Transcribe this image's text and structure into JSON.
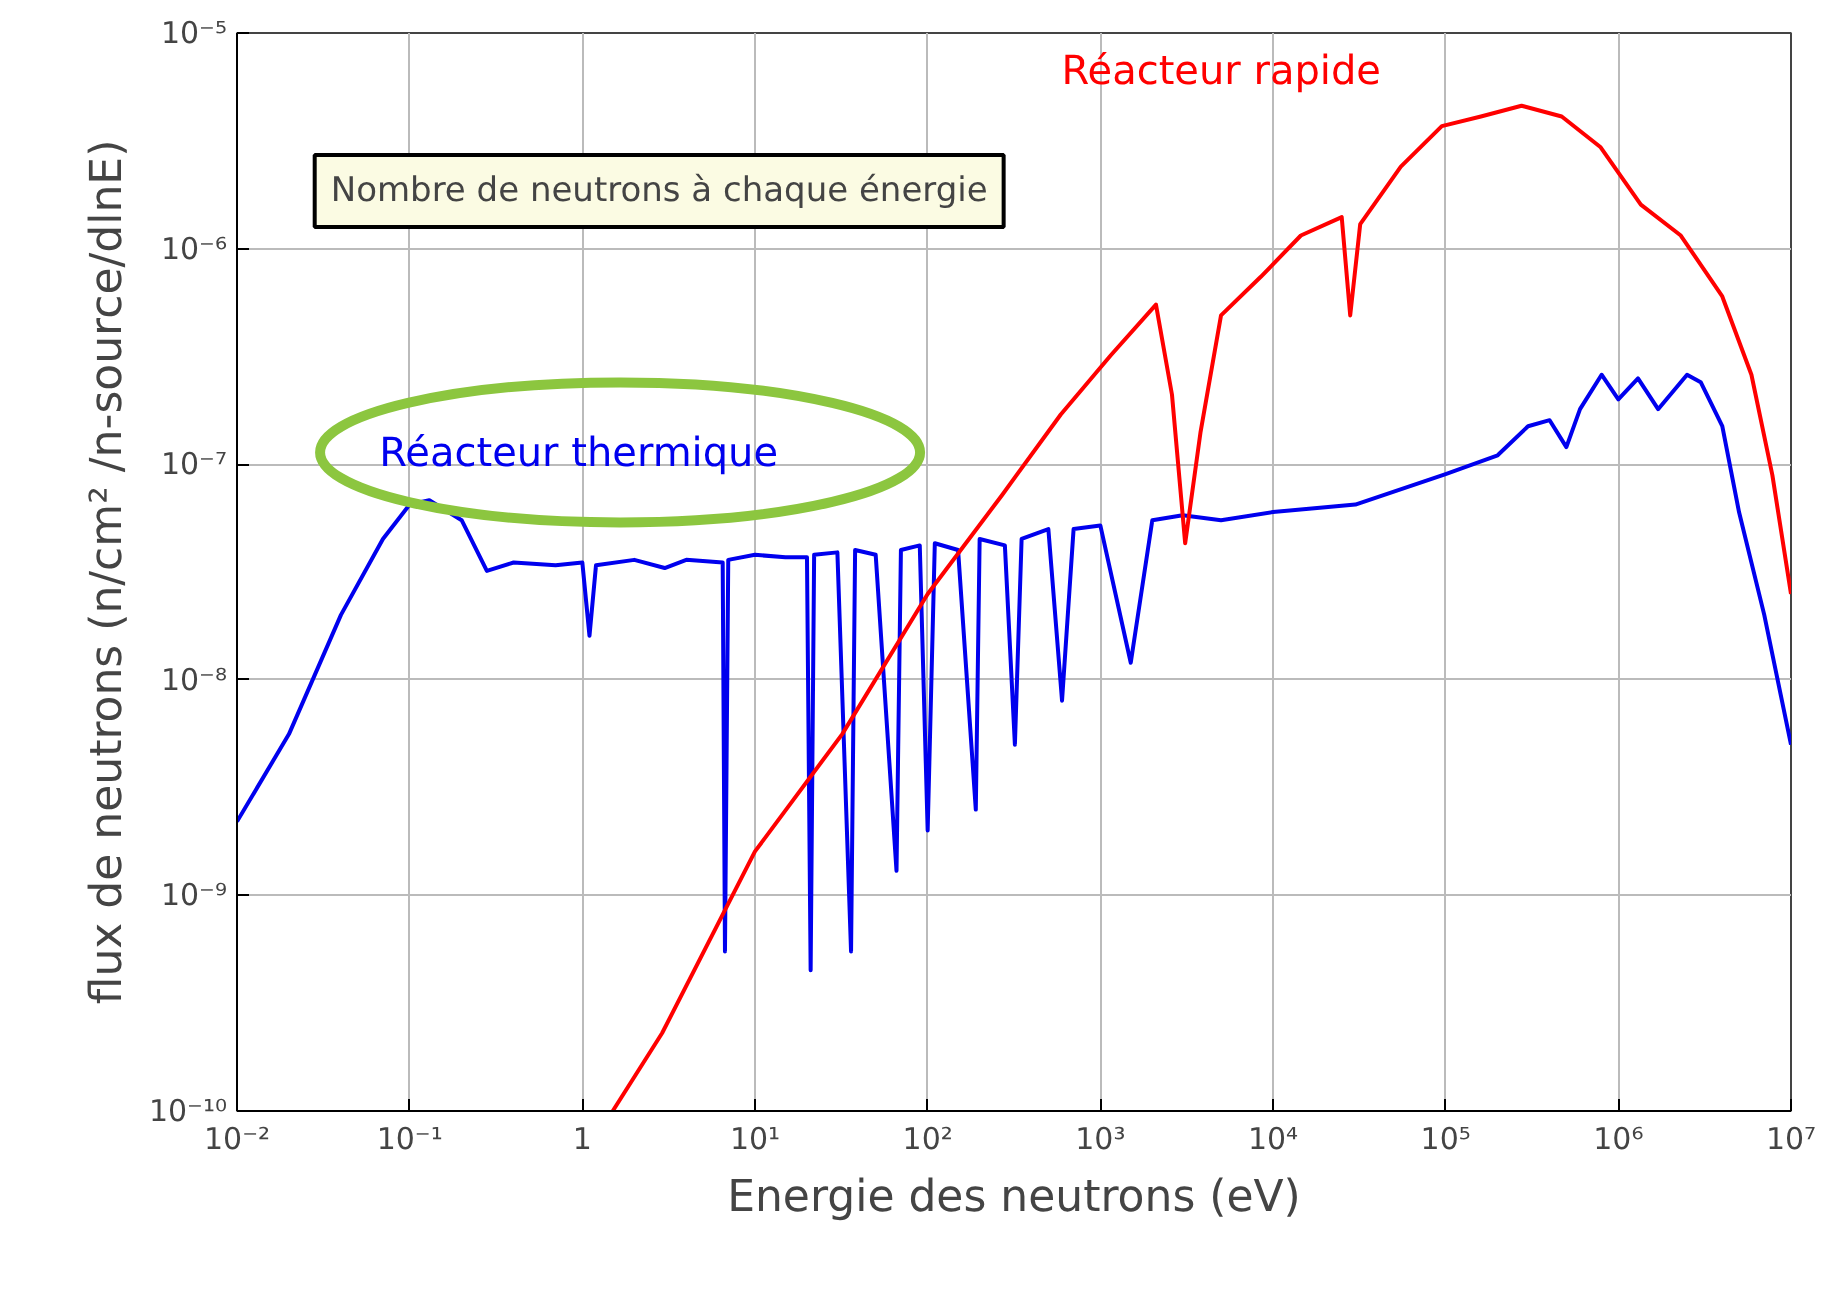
{
  "chart_data": {
    "type": "line",
    "xlabel": "Energie des neutrons (eV)",
    "ylabel": "flux de neutrons (n/cm² /n-source/dlnE)",
    "log": "xy",
    "grid": true,
    "marker": "none",
    "line_style": "solid",
    "xlim": [
      0.01,
      10000000
    ],
    "ylim": [
      1e-10,
      1e-05
    ],
    "xticks": [
      {
        "value": 0.01,
        "label": "10⁻²"
      },
      {
        "value": 0.1,
        "label": "10⁻¹"
      },
      {
        "value": 1,
        "label": "1"
      },
      {
        "value": 10,
        "label": "10¹"
      },
      {
        "value": 100,
        "label": "10²"
      },
      {
        "value": 1000,
        "label": "10³"
      },
      {
        "value": 10000,
        "label": "10⁴"
      },
      {
        "value": 100000,
        "label": "10⁵"
      },
      {
        "value": 1000000,
        "label": "10⁶"
      },
      {
        "value": 10000000,
        "label": "10⁷"
      }
    ],
    "yticks": [
      {
        "value": 1e-10,
        "label": "10⁻¹⁰"
      },
      {
        "value": 1e-09,
        "label": "10⁻⁹"
      },
      {
        "value": 1e-08,
        "label": "10⁻⁸"
      },
      {
        "value": 1e-07,
        "label": "10⁻⁷"
      },
      {
        "value": 1e-06,
        "label": "10⁻⁶"
      },
      {
        "value": 1e-05,
        "label": "10⁻⁵"
      }
    ],
    "annotations": [
      "Nombre de neutrons à chaque énergie"
    ],
    "series": [
      {
        "name": "Réacteur thermique",
        "color": "#0000ee",
        "x": [
          0.01,
          0.02,
          0.04,
          0.07,
          0.1,
          0.13,
          0.2,
          0.28,
          0.4,
          0.7,
          1.0,
          1.1,
          1.2,
          2,
          3,
          4,
          6.5,
          6.7,
          7,
          10,
          15,
          20,
          21,
          22,
          30,
          36,
          38,
          50,
          66,
          70,
          90,
          100,
          110,
          150,
          190,
          200,
          280,
          320,
          350,
          500,
          600,
          700,
          1000,
          1500,
          2000,
          3000,
          5000,
          10000,
          30000,
          100000,
          200000,
          300000,
          400000,
          500000,
          600000,
          800000,
          1000000,
          1300000,
          1700000,
          2500000,
          3000000,
          4000000,
          5000000,
          7000000,
          10000000
        ],
        "values": [
          2.2e-09,
          5.6e-09,
          2e-08,
          4.5e-08,
          6.5e-08,
          6.8e-08,
          5.5e-08,
          3.2e-08,
          3.5e-08,
          3.4e-08,
          3.5e-08,
          1.6e-08,
          3.4e-08,
          3.6e-08,
          3.3e-08,
          3.6e-08,
          3.5e-08,
          5.5e-10,
          3.6e-08,
          3.8e-08,
          3.7e-08,
          3.7e-08,
          4.5e-10,
          3.8e-08,
          3.9e-08,
          5.5e-10,
          4e-08,
          3.8e-08,
          1.3e-09,
          4e-08,
          4.2e-08,
          2e-09,
          4.3e-08,
          4e-08,
          2.5e-09,
          4.5e-08,
          4.2e-08,
          5e-09,
          4.5e-08,
          5e-08,
          8e-09,
          5e-08,
          5.2e-08,
          1.2e-08,
          5.5e-08,
          5.8e-08,
          5.5e-08,
          6e-08,
          6.5e-08,
          9e-08,
          1.1e-07,
          1.5e-07,
          1.6e-07,
          1.2e-07,
          1.8e-07,
          2.6e-07,
          2e-07,
          2.5e-07,
          1.8e-07,
          2.6e-07,
          2.4e-07,
          1.5e-07,
          6e-08,
          2e-08,
          5e-09
        ]
      },
      {
        "name": "Réacteur rapide",
        "color": "#ff0000",
        "x": [
          1.5,
          2.9,
          10,
          32,
          100,
          270,
          590,
          1150,
          2100,
          2600,
          3100,
          3800,
          5000,
          8500,
          14500,
          25000,
          28000,
          32000,
          55000,
          95000,
          160000,
          275000,
          470000,
          790000,
          1350000,
          2300000,
          4000000,
          5900000,
          7800000,
          10000000
        ],
        "values": [
          1e-10,
          2.3e-10,
          1.6e-09,
          5.6e-09,
          2.5e-08,
          7.2e-08,
          1.7e-07,
          3.2e-07,
          5.5e-07,
          2.1e-07,
          4.3e-08,
          1.4e-07,
          4.9e-07,
          7.4e-07,
          1.15e-06,
          1.4e-06,
          4.9e-07,
          1.3e-06,
          2.4e-06,
          3.7e-06,
          4.1e-06,
          4.6e-06,
          4.1e-06,
          2.95e-06,
          1.6e-06,
          1.15e-06,
          6e-07,
          2.6e-07,
          8.9e-08,
          2.5e-08
        ]
      }
    ]
  }
}
